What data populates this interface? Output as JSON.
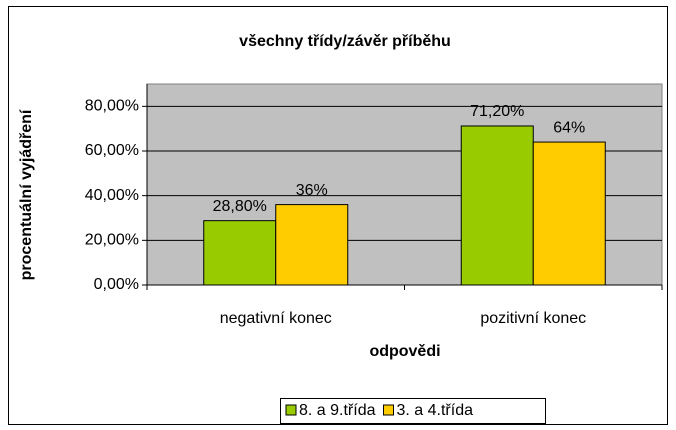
{
  "chart_data": {
    "type": "bar",
    "title": "všechny třídy/závěr příběhu",
    "xlabel": "odpovědi",
    "ylabel": "procentuální vyjádření",
    "categories": [
      "negativní konec",
      "pozitivní konec"
    ],
    "series": [
      {
        "name": "8. a 9.třída",
        "color": "#99cc00",
        "values": [
          28.8,
          71.2
        ],
        "value_labels": [
          "28,80%",
          "71,20%"
        ]
      },
      {
        "name": "3. a 4.třída",
        "color": "#ffcc00",
        "values": [
          36,
          64
        ],
        "value_labels": [
          "36%",
          "64%"
        ]
      }
    ],
    "ylim": [
      0,
      90
    ],
    "yticks": [
      {
        "value": 0,
        "label": "0,00%"
      },
      {
        "value": 20,
        "label": "20,00%"
      },
      {
        "value": 40,
        "label": "40,00%"
      },
      {
        "value": 60,
        "label": "60,00%"
      },
      {
        "value": 80,
        "label": "80,00%"
      }
    ],
    "grid": true,
    "legend": "bottom"
  }
}
